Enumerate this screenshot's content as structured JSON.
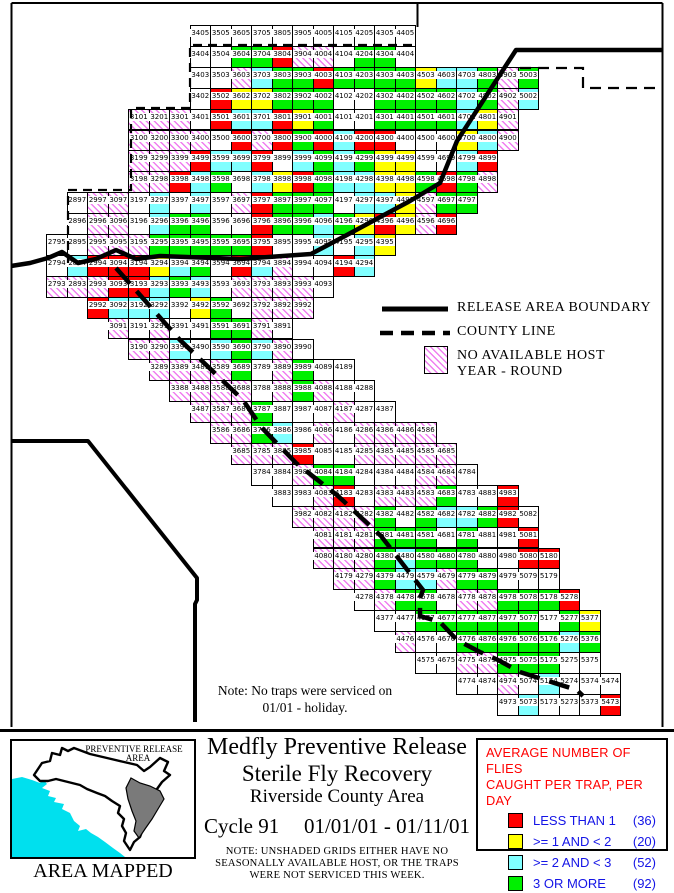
{
  "map": {
    "legend": {
      "boundary_label": "RELEASE AREA BOUNDARY",
      "county_label": "COUNTY LINE",
      "host_label_line1": "NO AVAILABLE HOST",
      "host_label_line2": "YEAR - ROUND"
    },
    "note_line1": "Note: No traps were serviced on",
    "note_line2": "01/01 - holiday.",
    "grid": {
      "color_key": {
        "W": "#FFFFFF",
        "R": "#FF0000",
        "Y": "#FFFF00",
        "C": "#80FFFF",
        "G": "#00F000",
        "H": "hatched-no-host"
      },
      "rows": [
        {
          "row": "05",
          "start": 34,
          "cells": "WWWWWWWWWWW"
        },
        {
          "row": "04",
          "start": 34,
          "cells": "WWGGRHHWGGW"
        },
        {
          "row": "03",
          "start": 34,
          "cells": "WWHCGGRGGGGYCCGHG"
        },
        {
          "row": "02",
          "start": 34,
          "cells": "WRYYGGGWWGGGGCGHC"
        },
        {
          "row": "01",
          "start": 31,
          "cells": "HHHWRCCRYGWWGGGGCYH"
        },
        {
          "row": "00",
          "start": 31,
          "cells": "HHHHWRHRGRCRRWWWYCH"
        },
        {
          "row": "99",
          "start": 31,
          "cells": "HHHRCCRWCGCGYYWWCR"
        },
        {
          "row": "98",
          "start": 31,
          "cells": "HHRCGWCYRGCCYYGRGH"
        },
        {
          "row": "97",
          "start": 28,
          "cells": "WHHWCWCWHRGGGWCCYHGG"
        },
        {
          "row": "96",
          "start": 28,
          "cells": "WHHWCGGWWRGGCGYRYHR"
        },
        {
          "row": "95",
          "start": 27,
          "cells": "WWHHHGGGGGRWWCWCY"
        },
        {
          "row": "94",
          "start": 27,
          "cells": "WCRRRYCGWRCHWWRC"
        },
        {
          "row": "93",
          "start": 27,
          "cells": "HHHRRCGCWHHHHW"
        },
        {
          "row": "92",
          "start": 29,
          "cells": "RCCCWYGWHHH"
        },
        {
          "row": "91",
          "start": 30,
          "cells": "HWHWWGGHW"
        },
        {
          "row": "90",
          "start": 31,
          "cells": "HHCWCGCHW"
        },
        {
          "row": "89",
          "start": 32,
          "cells": "HHHHGWHGWW"
        },
        {
          "row": "88",
          "start": 33,
          "cells": "HHHHWHGHWW"
        },
        {
          "row": "87",
          "start": 34,
          "cells": "HHHGWWWHWW"
        },
        {
          "row": "86",
          "start": 35,
          "cells": "HHGCWHWHHHH"
        },
        {
          "row": "85",
          "start": 36,
          "cells": "HHHRWWHHHHH"
        },
        {
          "row": "84",
          "start": 37,
          "cells": "WWHGGWWWHHW"
        },
        {
          "row": "83",
          "start": 38,
          "cells": "WWHRWHHHGWWR"
        },
        {
          "row": "82",
          "start": 39,
          "cells": "HHHHGWGCCGRW"
        },
        {
          "row": "81",
          "start": 40,
          "cells": "HHHGGGWGWWR"
        },
        {
          "row": "80",
          "start": 40,
          "cells": "HHHGCGGGWWRR"
        },
        {
          "row": "79",
          "start": 41,
          "cells": "HHGCCHGGWWW"
        },
        {
          "row": "78",
          "start": 42,
          "cells": "WHGGWHHGGGR"
        },
        {
          "row": "77",
          "start": 43,
          "cells": "WWGGGGGGWGY"
        },
        {
          "row": "76",
          "start": 44,
          "cells": "HWWGGGGGCG"
        },
        {
          "row": "75",
          "start": 45,
          "cells": "WWHHGGGWW"
        },
        {
          "row": "74",
          "start": 47,
          "cells": "WWHWCWWW"
        },
        {
          "row": "73",
          "start": 49,
          "cells": "WCWWWR"
        }
      ]
    }
  },
  "footer": {
    "title_line1": "Medfly Preventive Release",
    "title_line2": "Sterile Fly Recovery",
    "title_line3": "Riverside County Area",
    "cycle_label": "Cycle 91",
    "date_range": "01/01/01 - 01/11/01",
    "note_line1": "NOTE: UNSHADED GRIDS EITHER HAVE NO",
    "note_line2": "SEASONALLY AVAILABLE HOST, OR THE TRAPS",
    "note_line3": "WERE NOT SERVICED THIS WEEK.",
    "inset": {
      "caption_line1": "PREVENTIVE RELEASE",
      "caption_line2": "AREA",
      "label": "AREA MAPPED"
    },
    "flies_legend": {
      "title_line1": "AVERAGE NUMBER OF FLIES",
      "title_line2": "CAUGHT PER TRAP, PER DAY",
      "items": [
        {
          "color": "#ff0000",
          "label": "LESS THAN 1",
          "count": "(36)"
        },
        {
          "color": "#ffff00",
          "label": ">= 1 AND < 2",
          "count": "(20)"
        },
        {
          "color": "#80ffff",
          "label": ">= 2 AND < 3",
          "count": "(52)"
        },
        {
          "color": "#00f000",
          "label": "3 OR MORE",
          "count": "(92)"
        }
      ]
    }
  },
  "colors": {
    "accent_red": "#ff0000",
    "accent_blue": "#1414e6",
    "hatch_magenta": "#f07df0",
    "ocean_cyan": "#00e0ee",
    "mapped_gray": "#7a7a7a"
  }
}
